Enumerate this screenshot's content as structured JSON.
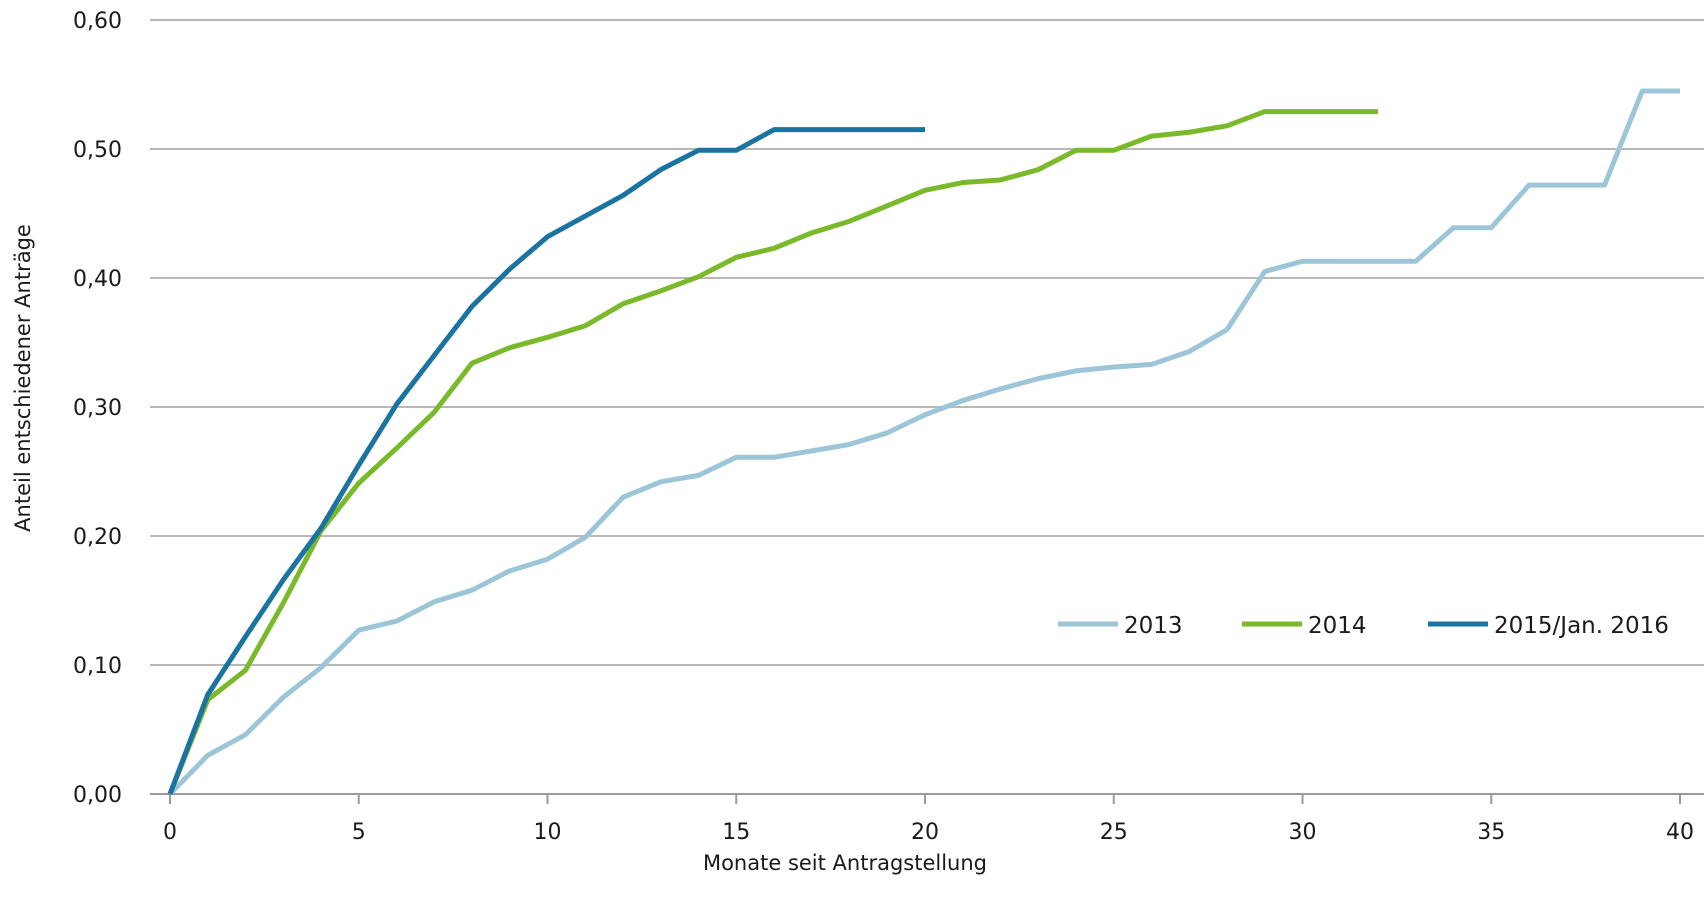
{
  "chart_data": {
    "type": "line",
    "title": "",
    "xlabel": "Monate seit Antragstellung",
    "ylabel": "Anteil entschiedener  Anträge",
    "xlim": [
      0,
      40.5
    ],
    "ylim": [
      0,
      0.6
    ],
    "x_ticks": [
      0,
      5,
      10,
      15,
      20,
      25,
      30,
      35,
      40
    ],
    "y_ticks": [
      0,
      0.1,
      0.2,
      0.3,
      0.4,
      0.5,
      0.6
    ],
    "x_tick_labels": [
      "0",
      "5",
      "10",
      "15",
      "20",
      "25",
      "30",
      "35",
      "40"
    ],
    "y_tick_labels": [
      "0,00",
      "0,10",
      "0,20",
      "0,30",
      "0,40",
      "0,50",
      "0,60"
    ],
    "grid": "horizontal",
    "legend_position": "bottom-right",
    "series": [
      {
        "name": "2013",
        "color": "#9cc6d8",
        "x": [
          0,
          1,
          2,
          3,
          4,
          5,
          6,
          7,
          8,
          9,
          10,
          11,
          12,
          13,
          14,
          15,
          16,
          17,
          18,
          19,
          20,
          21,
          22,
          23,
          24,
          25,
          26,
          27,
          28,
          29,
          30,
          31,
          32,
          33,
          34,
          35,
          36,
          37,
          38,
          39,
          40
        ],
        "y": [
          0,
          0.03,
          0.046,
          0.075,
          0.098,
          0.127,
          0.134,
          0.149,
          0.158,
          0.173,
          0.182,
          0.199,
          0.23,
          0.242,
          0.247,
          0.261,
          0.261,
          0.266,
          0.271,
          0.28,
          0.294,
          0.305,
          0.314,
          0.322,
          0.328,
          0.331,
          0.333,
          0.343,
          0.36,
          0.405,
          0.413,
          0.413,
          0.413,
          0.413,
          0.439,
          0.439,
          0.472,
          0.472,
          0.472,
          0.545,
          0.545
        ]
      },
      {
        "name": "2014",
        "color": "#7ab929",
        "x": [
          0,
          1,
          2,
          3,
          4,
          5,
          6,
          7,
          8,
          9,
          10,
          11,
          12,
          13,
          14,
          15,
          16,
          17,
          18,
          19,
          20,
          21,
          22,
          23,
          24,
          25,
          26,
          27,
          28,
          29,
          30,
          31,
          32
        ],
        "y": [
          0,
          0.073,
          0.096,
          0.148,
          0.204,
          0.241,
          0.268,
          0.296,
          0.334,
          0.346,
          0.354,
          0.363,
          0.38,
          0.39,
          0.401,
          0.416,
          0.423,
          0.435,
          0.444,
          0.456,
          0.468,
          0.474,
          0.476,
          0.484,
          0.499,
          0.499,
          0.51,
          0.513,
          0.518,
          0.529,
          0.529,
          0.529,
          0.529
        ]
      },
      {
        "name": "2015/Jan. 2016",
        "color": "#1a73a1",
        "x": [
          0,
          1,
          2,
          3,
          4,
          5,
          6,
          7,
          8,
          9,
          10,
          11,
          12,
          13,
          14,
          15,
          16,
          17,
          18,
          19,
          20
        ],
        "y": [
          0,
          0.077,
          0.122,
          0.166,
          0.206,
          0.255,
          0.302,
          0.34,
          0.378,
          0.407,
          0.432,
          0.448,
          0.464,
          0.484,
          0.499,
          0.499,
          0.515,
          0.515,
          0.515,
          0.515,
          0.515
        ]
      }
    ]
  }
}
